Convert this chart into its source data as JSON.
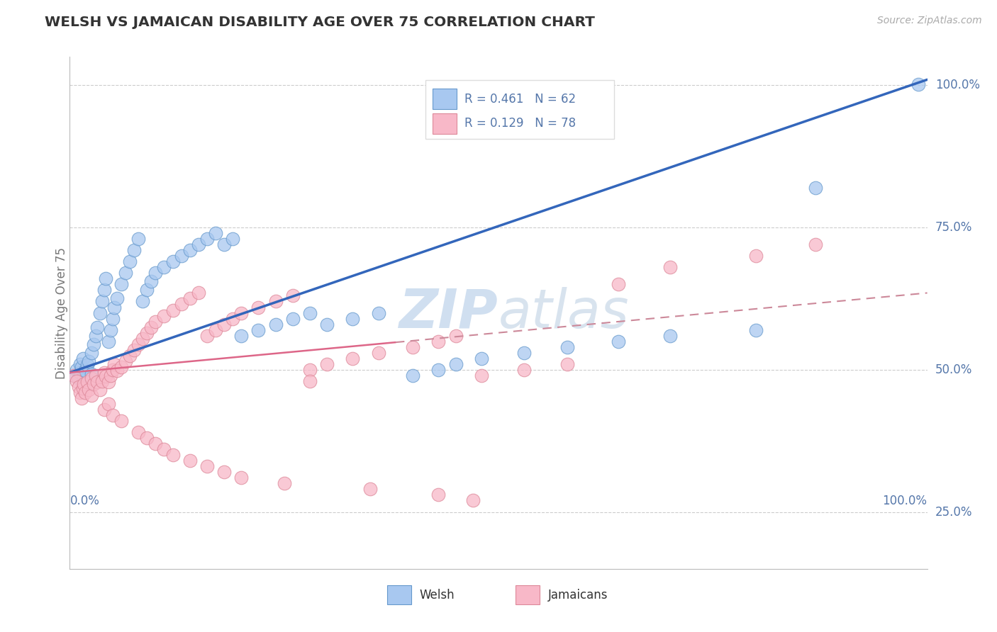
{
  "title": "WELSH VS JAMAICAN DISABILITY AGE OVER 75 CORRELATION CHART",
  "source": "Source: ZipAtlas.com",
  "ylabel": "Disability Age Over 75",
  "welsh_R": 0.461,
  "welsh_N": 62,
  "jamaican_R": 0.129,
  "jamaican_N": 78,
  "welsh_color": "#A8C8F0",
  "jamaican_color": "#F8B8C8",
  "welsh_edge_color": "#6699CC",
  "jamaican_edge_color": "#DD8899",
  "welsh_line_color": "#3366BB",
  "jamaican_line_color": "#DD6688",
  "jamaican_dash_color": "#CC8899",
  "background_color": "#FFFFFF",
  "grid_color": "#CCCCCC",
  "title_color": "#333333",
  "axis_label_color": "#5577AA",
  "watermark_color": "#D0DFF0",
  "xlim": [
    0.0,
    1.0
  ],
  "ylim": [
    0.15,
    1.05
  ],
  "ytick_positions": [
    0.25,
    0.5,
    0.75,
    1.0
  ],
  "ytick_labels": [
    "25.0%",
    "50.0%",
    "75.0%",
    "100.0%"
  ],
  "welsh_line_x": [
    0.0,
    1.0
  ],
  "welsh_line_y": [
    0.495,
    1.01
  ],
  "jamaican_line_x": [
    0.0,
    1.0
  ],
  "jamaican_line_y": [
    0.495,
    0.635
  ],
  "welsh_x": [
    0.005,
    0.008,
    0.01,
    0.012,
    0.012,
    0.014,
    0.015,
    0.016,
    0.018,
    0.02,
    0.022,
    0.025,
    0.025,
    0.028,
    0.03,
    0.032,
    0.035,
    0.038,
    0.04,
    0.042,
    0.045,
    0.048,
    0.05,
    0.052,
    0.055,
    0.06,
    0.065,
    0.07,
    0.075,
    0.08,
    0.085,
    0.09,
    0.095,
    0.1,
    0.11,
    0.12,
    0.13,
    0.14,
    0.15,
    0.16,
    0.17,
    0.18,
    0.19,
    0.2,
    0.22,
    0.24,
    0.26,
    0.28,
    0.3,
    0.33,
    0.36,
    0.4,
    0.43,
    0.45,
    0.48,
    0.53,
    0.58,
    0.64,
    0.7,
    0.8,
    0.87,
    0.99
  ],
  "welsh_y": [
    0.49,
    0.5,
    0.485,
    0.51,
    0.495,
    0.505,
    0.52,
    0.488,
    0.498,
    0.508,
    0.515,
    0.53,
    0.492,
    0.545,
    0.56,
    0.575,
    0.6,
    0.62,
    0.64,
    0.66,
    0.55,
    0.57,
    0.59,
    0.61,
    0.625,
    0.65,
    0.67,
    0.69,
    0.71,
    0.73,
    0.62,
    0.64,
    0.655,
    0.67,
    0.68,
    0.69,
    0.7,
    0.71,
    0.72,
    0.73,
    0.74,
    0.72,
    0.73,
    0.56,
    0.57,
    0.58,
    0.59,
    0.6,
    0.58,
    0.59,
    0.6,
    0.49,
    0.5,
    0.51,
    0.52,
    0.53,
    0.54,
    0.55,
    0.56,
    0.57,
    0.82,
    1.002
  ],
  "jamaican_x": [
    0.005,
    0.008,
    0.01,
    0.012,
    0.014,
    0.015,
    0.016,
    0.018,
    0.02,
    0.022,
    0.025,
    0.025,
    0.028,
    0.03,
    0.032,
    0.035,
    0.038,
    0.04,
    0.042,
    0.045,
    0.048,
    0.05,
    0.052,
    0.055,
    0.06,
    0.065,
    0.07,
    0.075,
    0.08,
    0.085,
    0.09,
    0.095,
    0.1,
    0.11,
    0.12,
    0.13,
    0.14,
    0.15,
    0.16,
    0.17,
    0.18,
    0.19,
    0.2,
    0.22,
    0.24,
    0.26,
    0.28,
    0.3,
    0.33,
    0.36,
    0.4,
    0.43,
    0.45,
    0.48,
    0.53,
    0.58,
    0.64,
    0.7,
    0.8,
    0.87,
    0.04,
    0.045,
    0.05,
    0.06,
    0.08,
    0.09,
    0.1,
    0.11,
    0.12,
    0.14,
    0.16,
    0.18,
    0.2,
    0.25,
    0.35,
    0.28,
    0.43,
    0.47
  ],
  "jamaican_y": [
    0.49,
    0.48,
    0.47,
    0.46,
    0.45,
    0.468,
    0.475,
    0.46,
    0.478,
    0.465,
    0.455,
    0.485,
    0.475,
    0.49,
    0.478,
    0.465,
    0.48,
    0.495,
    0.488,
    0.478,
    0.49,
    0.5,
    0.51,
    0.498,
    0.505,
    0.515,
    0.525,
    0.535,
    0.545,
    0.555,
    0.565,
    0.575,
    0.585,
    0.595,
    0.605,
    0.615,
    0.625,
    0.635,
    0.56,
    0.57,
    0.58,
    0.59,
    0.6,
    0.61,
    0.62,
    0.63,
    0.5,
    0.51,
    0.52,
    0.53,
    0.54,
    0.55,
    0.56,
    0.49,
    0.5,
    0.51,
    0.65,
    0.68,
    0.7,
    0.72,
    0.43,
    0.44,
    0.42,
    0.41,
    0.39,
    0.38,
    0.37,
    0.36,
    0.35,
    0.34,
    0.33,
    0.32,
    0.31,
    0.3,
    0.29,
    0.48,
    0.28,
    0.27
  ]
}
